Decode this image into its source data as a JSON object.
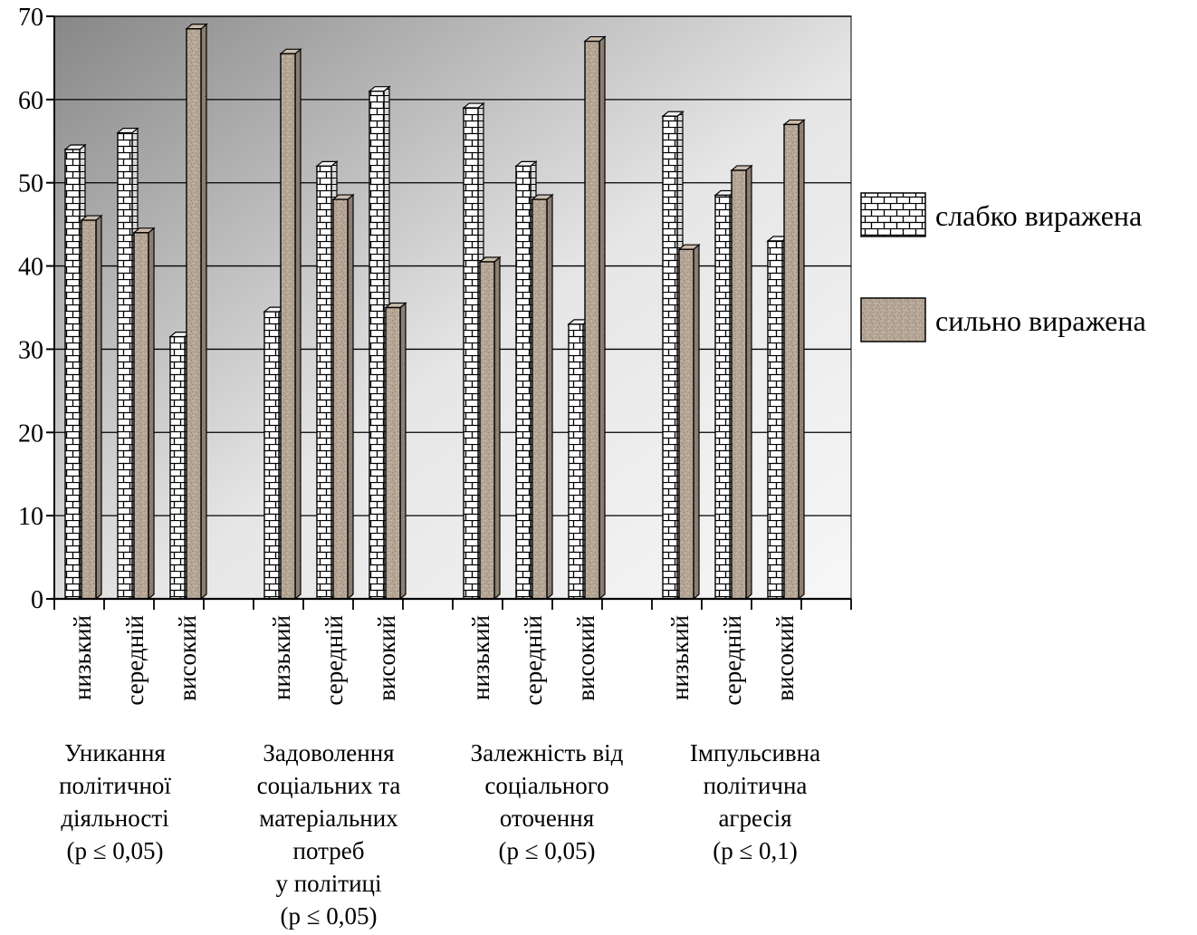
{
  "chart_data": {
    "type": "bar",
    "title": "",
    "ylim": [
      0,
      70
    ],
    "yticks": [
      "0",
      "10",
      "20",
      "30",
      "40",
      "50",
      "60",
      "70"
    ],
    "grid": true,
    "legend_position": "right",
    "groups": [
      {
        "label_lines": [
          "Уникання",
          "політичної",
          "діяльності",
          "(p ≤ 0,05)"
        ],
        "categories": [
          "низький",
          "середній",
          "високий"
        ],
        "series": [
          {
            "name": "слабко виражена",
            "values": [
              54,
              56,
              31.5
            ]
          },
          {
            "name": "сильно виражена",
            "values": [
              45.5,
              44,
              68.5
            ]
          }
        ]
      },
      {
        "label_lines": [
          "Задоволення",
          "соціальних та",
          "матеріальних",
          "потреб",
          "у політиці",
          "(p ≤ 0,05)"
        ],
        "categories": [
          "низький",
          "середній",
          "високий"
        ],
        "series": [
          {
            "name": "слабко виражена",
            "values": [
              34.5,
              52,
              61
            ]
          },
          {
            "name": "сильно виражена",
            "values": [
              65.5,
              48,
              35
            ]
          }
        ]
      },
      {
        "label_lines": [
          "Залежність від",
          "соціального",
          "оточення",
          "(p ≤ 0,05)"
        ],
        "categories": [
          "низький",
          "середній",
          "високий"
        ],
        "series": [
          {
            "name": "слабко виражена",
            "values": [
              59,
              52,
              33
            ]
          },
          {
            "name": "сильно виражена",
            "values": [
              40.5,
              48,
              67
            ]
          }
        ]
      },
      {
        "label_lines": [
          "Імпульсивна",
          "політична",
          "агресія",
          "(p ≤ 0,1)"
        ],
        "categories": [
          "низький",
          "середній",
          "високий"
        ],
        "series": [
          {
            "name": "слабко виражена",
            "values": [
              58,
              48.5,
              43
            ]
          },
          {
            "name": "сильно виражена",
            "values": [
              42,
              51.5,
              57
            ]
          }
        ]
      }
    ],
    "legend": [
      {
        "name": "слабко виражена",
        "fill": "brick"
      },
      {
        "name": "сильно виражена",
        "fill": "granite"
      }
    ],
    "colors": {
      "brick_face": "#ffffff",
      "brick_line": "#000000",
      "granite": "#b8a898",
      "plot_dark": "#8a8a8a",
      "plot_light": "#f4f4f4"
    }
  }
}
